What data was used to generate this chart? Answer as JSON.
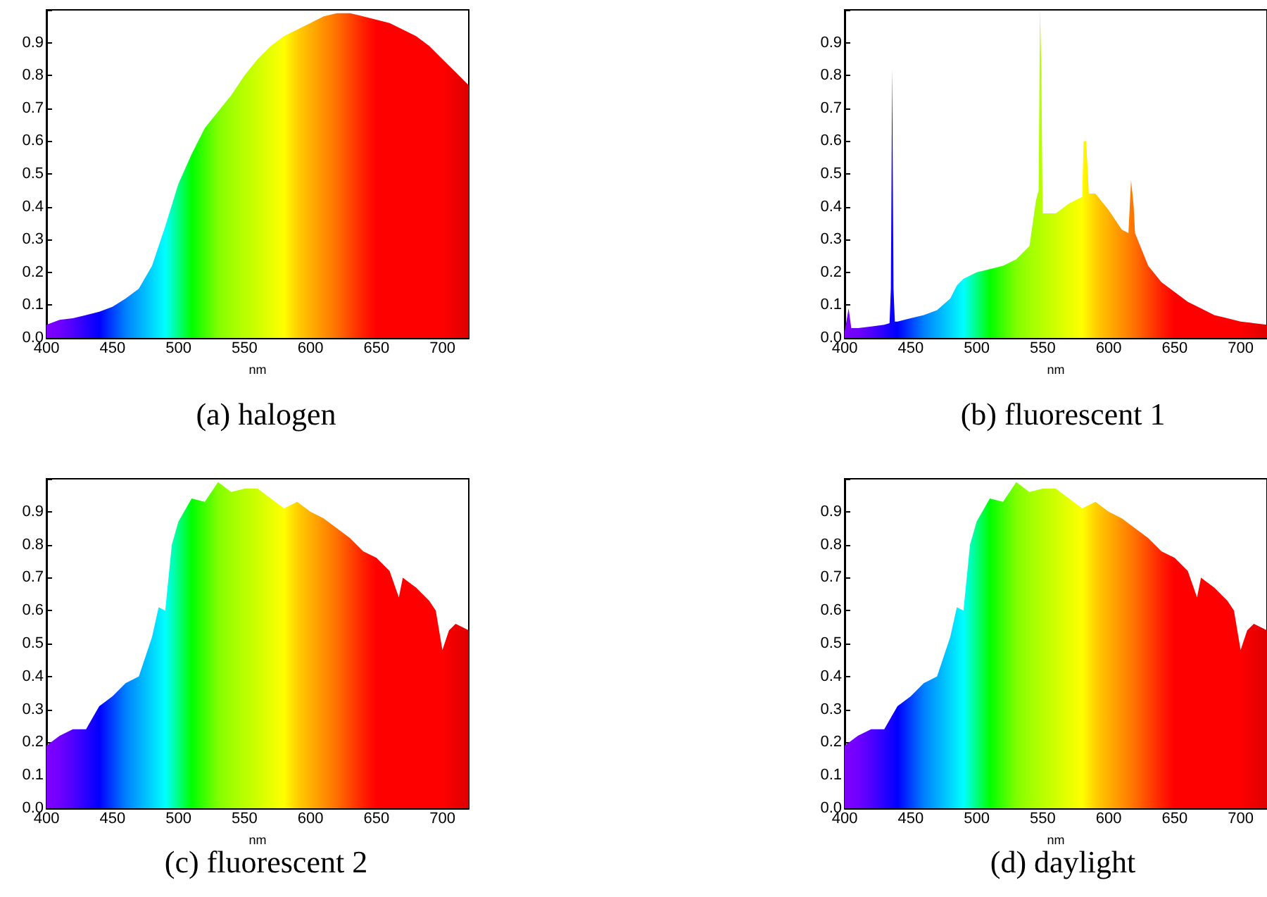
{
  "chart_data": [
    {
      "type": "area",
      "title": "(a) halogen",
      "xlabel": "nm",
      "xlim": [
        400,
        720
      ],
      "xticks": [
        400,
        450,
        500,
        550,
        600,
        650,
        700
      ],
      "ylim": [
        0,
        1
      ],
      "yticks": [
        {
          "value": 0,
          "label": "0.0"
        },
        {
          "value": 0.1,
          "label": "0.1"
        },
        {
          "value": 0.2,
          "label": "0.2"
        },
        {
          "value": 0.3,
          "label": "0.3"
        },
        {
          "value": 0.4,
          "label": "0.4"
        },
        {
          "value": 0.5,
          "label": "0.5"
        },
        {
          "value": 0.6,
          "label": "0.6"
        },
        {
          "value": 0.7,
          "label": "0.7"
        },
        {
          "value": 0.8,
          "label": "0.8"
        },
        {
          "value": 0.9,
          "label": "0.9"
        },
        {
          "value": 1,
          "label": null
        }
      ],
      "x": [
        400,
        410,
        420,
        430,
        440,
        450,
        460,
        470,
        480,
        490,
        500,
        510,
        520,
        530,
        540,
        550,
        560,
        570,
        580,
        590,
        600,
        610,
        620,
        630,
        640,
        650,
        660,
        670,
        680,
        690,
        700,
        710,
        720
      ],
      "series": [
        {
          "values": [
            0.04,
            0.055,
            0.06,
            0.07,
            0.08,
            0.095,
            0.12,
            0.15,
            0.22,
            0.34,
            0.47,
            0.56,
            0.64,
            0.69,
            0.74,
            0.8,
            0.85,
            0.89,
            0.92,
            0.94,
            0.96,
            0.98,
            0.99,
            0.99,
            0.98,
            0.97,
            0.96,
            0.94,
            0.92,
            0.89,
            0.85,
            0.81,
            0.77
          ],
          "colors": [
            "#8000ff",
            "#7000ff",
            "#5000ff",
            "#2800ff",
            "#0000ff",
            "#0040ff",
            "#0080ff",
            "#00aaff",
            "#00d5ff",
            "#00ffff",
            "#00ff80",
            "#00ff00",
            "#40ff00",
            "#80ff00",
            "#a0ff00",
            "#b8ff00",
            "#d0ff00",
            "#e8ff00",
            "#ffff00",
            "#ffd000",
            "#ffb000",
            "#ff9000",
            "#ff7000",
            "#ff4800",
            "#ff2000",
            "#ff0000",
            "#ff0000",
            "#ff0000",
            "#ff0000",
            "#ff0000",
            "#ff0000",
            "#ee0000",
            "#dd0000"
          ]
        }
      ]
    },
    {
      "type": "area",
      "title": "(b) fluorescent 1",
      "xlabel": "nm",
      "xlim": [
        400,
        720
      ],
      "xticks": [
        400,
        450,
        500,
        550,
        600,
        650,
        700
      ],
      "ylim": [
        0,
        1
      ],
      "yticks": [
        {
          "value": 0,
          "label": "0.0"
        },
        {
          "value": 0.1,
          "label": "0.1"
        },
        {
          "value": 0.2,
          "label": "0.2"
        },
        {
          "value": 0.3,
          "label": "0.3"
        },
        {
          "value": 0.4,
          "label": "0.4"
        },
        {
          "value": 0.5,
          "label": "0.5"
        },
        {
          "value": 0.6,
          "label": "0.6"
        },
        {
          "value": 0.7,
          "label": "0.7"
        },
        {
          "value": 0.8,
          "label": "0.8"
        },
        {
          "value": 0.9,
          "label": "0.9"
        },
        {
          "value": 1,
          "label": null
        }
      ],
      "x": [
        400,
        403,
        405,
        410,
        420,
        430,
        434,
        435,
        436,
        437,
        438,
        440,
        450,
        460,
        470,
        480,
        485,
        490,
        500,
        510,
        520,
        530,
        540,
        545,
        547,
        548,
        549,
        550,
        560,
        570,
        580,
        581,
        583,
        585,
        590,
        600,
        610,
        615,
        617,
        619,
        620,
        630,
        640,
        650,
        660,
        670,
        680,
        690,
        700,
        710,
        720
      ],
      "series": [
        {
          "values": [
            0.02,
            0.09,
            0.03,
            0.03,
            0.035,
            0.04,
            0.045,
            0.15,
            0.82,
            0.15,
            0.05,
            0.05,
            0.06,
            0.07,
            0.085,
            0.12,
            0.16,
            0.18,
            0.2,
            0.21,
            0.22,
            0.24,
            0.28,
            0.42,
            0.45,
            1,
            0.82,
            0.38,
            0.38,
            0.41,
            0.43,
            0.6,
            0.6,
            0.44,
            0.44,
            0.39,
            0.33,
            0.32,
            0.48,
            0.4,
            0.32,
            0.22,
            0.17,
            0.14,
            0.11,
            0.09,
            0.07,
            0.06,
            0.05,
            0.045,
            0.04
          ],
          "colors": [
            "#8000ff",
            "#7800ff",
            "#7400ff",
            "#7000ff",
            "#5000ff",
            "#2800ff",
            "#1400ff",
            "#1000ff",
            "#0c00ff",
            "#0800ff",
            "#0400ff",
            "#0000ff",
            "#0040ff",
            "#0080ff",
            "#00aaff",
            "#00d5ff",
            "#00eaff",
            "#00ffff",
            "#00ff80",
            "#00ff00",
            "#40ff00",
            "#80ff00",
            "#a0ff00",
            "#acff00",
            "#b0ff00",
            "#b4ff00",
            "#b6ff00",
            "#b8ff00",
            "#d0ff00",
            "#e8ff00",
            "#ffff00",
            "#fffa00",
            "#fff000",
            "#ffe800",
            "#ffd000",
            "#ffb000",
            "#ff9000",
            "#ff8000",
            "#ff7800",
            "#ff7400",
            "#ff7000",
            "#ff4800",
            "#ff2000",
            "#ff0000",
            "#ff0000",
            "#ff0000",
            "#ff0000",
            "#ff0000",
            "#ff0000",
            "#ee0000",
            "#dd0000"
          ]
        }
      ]
    },
    {
      "type": "area",
      "title": "(c) fluorescent 2",
      "xlabel": "nm",
      "xlim": [
        400,
        720
      ],
      "xticks": [
        400,
        450,
        500,
        550,
        600,
        650,
        700
      ],
      "ylim": [
        0,
        1
      ],
      "yticks": [
        {
          "value": 0,
          "label": "0.0"
        },
        {
          "value": 0.1,
          "label": "0.1"
        },
        {
          "value": 0.2,
          "label": "0.2"
        },
        {
          "value": 0.3,
          "label": "0.3"
        },
        {
          "value": 0.4,
          "label": "0.4"
        },
        {
          "value": 0.5,
          "label": "0.5"
        },
        {
          "value": 0.6,
          "label": "0.6"
        },
        {
          "value": 0.7,
          "label": "0.7"
        },
        {
          "value": 0.8,
          "label": "0.8"
        },
        {
          "value": 0.9,
          "label": "0.9"
        },
        {
          "value": 1,
          "label": null
        }
      ],
      "x": [
        400,
        410,
        420,
        430,
        440,
        450,
        460,
        470,
        480,
        485,
        490,
        495,
        500,
        510,
        520,
        530,
        540,
        550,
        560,
        570,
        580,
        590,
        600,
        610,
        620,
        630,
        640,
        650,
        660,
        667,
        670,
        680,
        690,
        695,
        700,
        705,
        710,
        720
      ],
      "series": [
        {
          "values": [
            0.19,
            0.22,
            0.24,
            0.24,
            0.31,
            0.34,
            0.38,
            0.4,
            0.52,
            0.61,
            0.6,
            0.8,
            0.87,
            0.94,
            0.93,
            0.99,
            0.96,
            0.97,
            0.97,
            0.94,
            0.91,
            0.93,
            0.9,
            0.88,
            0.85,
            0.82,
            0.78,
            0.76,
            0.72,
            0.64,
            0.7,
            0.67,
            0.63,
            0.6,
            0.48,
            0.54,
            0.56,
            0.54
          ],
          "colors": [
            "#8000ff",
            "#7000ff",
            "#5000ff",
            "#2800ff",
            "#0000ff",
            "#0040ff",
            "#0080ff",
            "#00aaff",
            "#00d5ff",
            "#00eaff",
            "#00ffff",
            "#00ffc0",
            "#00ff80",
            "#00ff00",
            "#40ff00",
            "#80ff00",
            "#a0ff00",
            "#b8ff00",
            "#d0ff00",
            "#e8ff00",
            "#ffff00",
            "#ffd000",
            "#ffb000",
            "#ff9000",
            "#ff7000",
            "#ff4800",
            "#ff2000",
            "#ff0000",
            "#ff0000",
            "#ff0000",
            "#ff0000",
            "#ff0000",
            "#ff0000",
            "#ff0000",
            "#ff0000",
            "#f60000",
            "#ee0000",
            "#dd0000"
          ]
        }
      ]
    },
    {
      "type": "area",
      "title": "(d) daylight",
      "xlabel": "nm",
      "xlim": [
        400,
        720
      ],
      "xticks": [
        400,
        450,
        500,
        550,
        600,
        650,
        700
      ],
      "ylim": [
        0,
        1
      ],
      "yticks": [
        {
          "value": 0,
          "label": "0.0"
        },
        {
          "value": 0.1,
          "label": "0.1"
        },
        {
          "value": 0.2,
          "label": "0.2"
        },
        {
          "value": 0.3,
          "label": "0.3"
        },
        {
          "value": 0.4,
          "label": "0.4"
        },
        {
          "value": 0.5,
          "label": "0.5"
        },
        {
          "value": 0.6,
          "label": "0.6"
        },
        {
          "value": 0.7,
          "label": "0.7"
        },
        {
          "value": 0.8,
          "label": "0.8"
        },
        {
          "value": 0.9,
          "label": "0.9"
        },
        {
          "value": 1,
          "label": null
        }
      ],
      "x": [
        400,
        410,
        420,
        430,
        440,
        450,
        460,
        470,
        480,
        485,
        490,
        495,
        500,
        510,
        520,
        530,
        540,
        550,
        560,
        570,
        580,
        590,
        600,
        610,
        620,
        630,
        640,
        650,
        660,
        667,
        670,
        680,
        690,
        695,
        700,
        705,
        710,
        720
      ],
      "series": [
        {
          "values": [
            0.19,
            0.22,
            0.24,
            0.24,
            0.31,
            0.34,
            0.38,
            0.4,
            0.52,
            0.61,
            0.6,
            0.8,
            0.87,
            0.94,
            0.93,
            0.99,
            0.96,
            0.97,
            0.97,
            0.94,
            0.91,
            0.93,
            0.9,
            0.88,
            0.85,
            0.82,
            0.78,
            0.76,
            0.72,
            0.64,
            0.7,
            0.67,
            0.63,
            0.6,
            0.48,
            0.54,
            0.56,
            0.54
          ],
          "colors": [
            "#8000ff",
            "#7000ff",
            "#5000ff",
            "#2800ff",
            "#0000ff",
            "#0040ff",
            "#0080ff",
            "#00aaff",
            "#00d5ff",
            "#00eaff",
            "#00ffff",
            "#00ffc0",
            "#00ff80",
            "#00ff00",
            "#40ff00",
            "#80ff00",
            "#a0ff00",
            "#b8ff00",
            "#d0ff00",
            "#e8ff00",
            "#ffff00",
            "#ffd000",
            "#ffb000",
            "#ff9000",
            "#ff7000",
            "#ff4800",
            "#ff2000",
            "#ff0000",
            "#ff0000",
            "#ff0000",
            "#ff0000",
            "#ff0000",
            "#ff0000",
            "#ff0000",
            "#ff0000",
            "#f60000",
            "#ee0000",
            "#dd0000"
          ]
        }
      ]
    }
  ]
}
